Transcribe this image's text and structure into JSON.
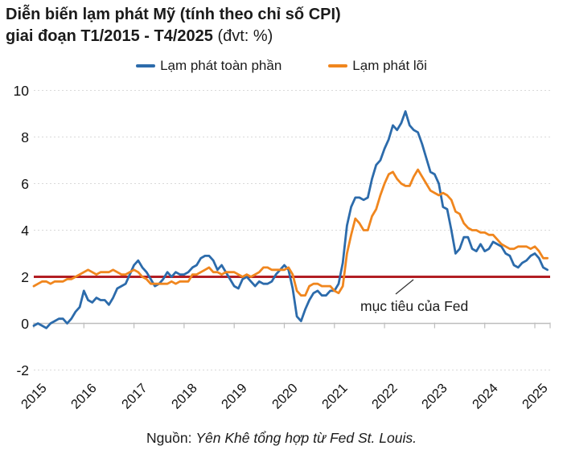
{
  "title": {
    "line1": "Diễn biến lạm phát Mỹ (tính theo chỉ số CPI)",
    "line2_bold": "giai đoạn T1/2015 - T4/2025",
    "line2_unit": " (đvt: %)"
  },
  "legend": [
    {
      "label": "Lạm phát toàn phần",
      "color": "#2C6BAB"
    },
    {
      "label": "Lạm phát lõi",
      "color": "#F0861E"
    }
  ],
  "annotation": {
    "text": "mục tiêu của Fed"
  },
  "source": {
    "prefix": "Nguồn: ",
    "text": "Yên Khê tổng hợp từ Fed St. Louis."
  },
  "colors": {
    "headline_blue": "#2C6BAB",
    "core_orange": "#F0861E",
    "fed_target_red": "#B21E23",
    "gridline": "#D9D9D9",
    "axis": "#BDBDBD",
    "text": "#1b1b1b"
  },
  "chart_data": {
    "type": "line",
    "title": "Diễn biến lạm phát Mỹ (tính theo chỉ số CPI) giai đoạn T1/2015 - T4/2025",
    "unit": "%",
    "frequency": "monthly",
    "start": "2015-01",
    "end": "2025-04",
    "x_tick_labels": [
      "2015",
      "2016",
      "2017",
      "2018",
      "2019",
      "2020",
      "2021",
      "2022",
      "2023",
      "2024",
      "2025"
    ],
    "y_ticks": [
      10,
      8,
      6,
      4,
      2,
      0,
      -2
    ],
    "ylim": [
      -2,
      10
    ],
    "grid": "horizontal-dashed",
    "legend_position": "top",
    "reference_line": {
      "value": 2,
      "color": "#B21E23",
      "label": "mục tiêu của Fed"
    },
    "series": [
      {
        "name": "Lạm phát toàn phần",
        "color": "#2C6BAB",
        "values": [
          -0.1,
          0.0,
          -0.1,
          -0.2,
          0.0,
          0.1,
          0.2,
          0.2,
          0.0,
          0.2,
          0.5,
          0.7,
          1.4,
          1.0,
          0.9,
          1.1,
          1.0,
          1.0,
          0.8,
          1.1,
          1.5,
          1.6,
          1.7,
          2.1,
          2.5,
          2.7,
          2.4,
          2.2,
          1.9,
          1.6,
          1.7,
          1.9,
          2.2,
          2.0,
          2.2,
          2.1,
          2.1,
          2.2,
          2.4,
          2.5,
          2.8,
          2.9,
          2.9,
          2.7,
          2.3,
          2.5,
          2.2,
          1.9,
          1.6,
          1.5,
          1.9,
          2.0,
          1.8,
          1.6,
          1.8,
          1.7,
          1.7,
          1.8,
          2.1,
          2.3,
          2.5,
          2.3,
          1.5,
          0.3,
          0.1,
          0.6,
          1.0,
          1.3,
          1.4,
          1.2,
          1.2,
          1.4,
          1.4,
          1.7,
          2.6,
          4.2,
          5.0,
          5.4,
          5.4,
          5.3,
          5.4,
          6.2,
          6.8,
          7.0,
          7.5,
          7.9,
          8.5,
          8.3,
          8.6,
          9.1,
          8.5,
          8.3,
          8.2,
          7.7,
          7.1,
          6.5,
          6.4,
          6.0,
          5.0,
          4.9,
          4.0,
          3.0,
          3.2,
          3.7,
          3.7,
          3.2,
          3.1,
          3.4,
          3.1,
          3.2,
          3.5,
          3.4,
          3.3,
          3.0,
          2.9,
          2.5,
          2.4,
          2.6,
          2.7,
          2.9,
          3.0,
          2.8,
          2.4,
          2.3
        ]
      },
      {
        "name": "Lạm phát lõi",
        "color": "#F0861E",
        "values": [
          1.6,
          1.7,
          1.8,
          1.8,
          1.7,
          1.8,
          1.8,
          1.8,
          1.9,
          1.9,
          2.0,
          2.1,
          2.2,
          2.3,
          2.2,
          2.1,
          2.2,
          2.2,
          2.2,
          2.3,
          2.2,
          2.1,
          2.1,
          2.2,
          2.3,
          2.2,
          2.0,
          1.9,
          1.7,
          1.7,
          1.7,
          1.7,
          1.7,
          1.8,
          1.7,
          1.8,
          1.8,
          1.8,
          2.1,
          2.1,
          2.2,
          2.3,
          2.4,
          2.2,
          2.2,
          2.1,
          2.2,
          2.2,
          2.2,
          2.1,
          2.0,
          2.1,
          2.0,
          2.1,
          2.2,
          2.4,
          2.4,
          2.3,
          2.3,
          2.3,
          2.3,
          2.4,
          2.1,
          1.4,
          1.2,
          1.2,
          1.6,
          1.7,
          1.7,
          1.6,
          1.6,
          1.6,
          1.4,
          1.3,
          1.6,
          3.0,
          3.8,
          4.5,
          4.3,
          4.0,
          4.0,
          4.6,
          4.9,
          5.5,
          6.0,
          6.4,
          6.5,
          6.2,
          6.0,
          5.9,
          5.9,
          6.3,
          6.6,
          6.3,
          6.0,
          5.7,
          5.6,
          5.5,
          5.6,
          5.5,
          5.3,
          4.8,
          4.7,
          4.3,
          4.1,
          4.0,
          4.0,
          3.9,
          3.9,
          3.8,
          3.8,
          3.6,
          3.4,
          3.3,
          3.2,
          3.2,
          3.3,
          3.3,
          3.3,
          3.2,
          3.3,
          3.1,
          2.8,
          2.8
        ]
      }
    ]
  }
}
